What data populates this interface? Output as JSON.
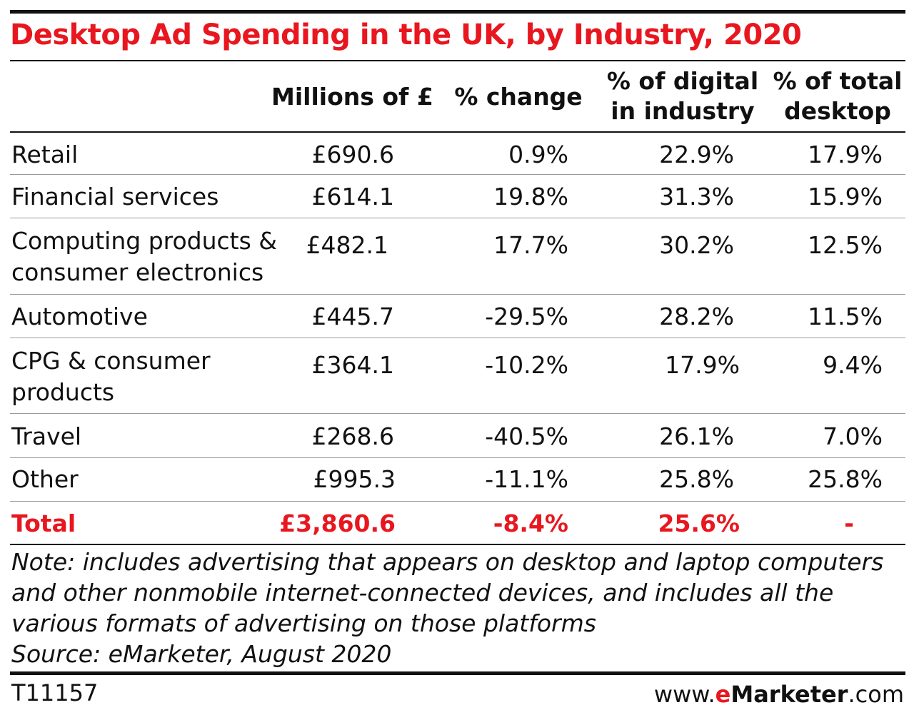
{
  "title": "Desktop Ad Spending in the UK, by Industry, 2020",
  "columns": {
    "millions": "Millions of £",
    "change": "% change",
    "digital_l1": "% of digital",
    "digital_l2": "in industry",
    "total_l1": "% of total",
    "total_l2": "desktop"
  },
  "rows": [
    {
      "label_l1": "Retail",
      "label_l2": "",
      "millions": "£690.6",
      "change": "0.9%",
      "digital": "22.9%",
      "total": "17.9%"
    },
    {
      "label_l1": "Financial services",
      "label_l2": "",
      "millions": "£614.1",
      "change": "19.8%",
      "digital": "31.3%",
      "total": "15.9%"
    },
    {
      "label_l1": "Computing products &",
      "label_l2": "consumer electronics",
      "millions": "£482.1",
      "change": "17.7%",
      "digital": "30.2%",
      "total": "12.5%"
    },
    {
      "label_l1": "Automotive",
      "label_l2": "",
      "millions": "£445.7",
      "change": "-29.5%",
      "digital": "28.2%",
      "total": "11.5%"
    },
    {
      "label_l1": "CPG & consumer",
      "label_l2": "products",
      "millions": "£364.1",
      "change": "-10.2%",
      "digital": "17.9%",
      "total": "9.4%"
    },
    {
      "label_l1": "Travel",
      "label_l2": "",
      "millions": "£268.6",
      "change": "-40.5%",
      "digital": "26.1%",
      "total": "7.0%"
    },
    {
      "label_l1": "Other",
      "label_l2": "",
      "millions": "£995.3",
      "change": "-11.1%",
      "digital": "25.8%",
      "total": "25.8%"
    }
  ],
  "total": {
    "label": "Total",
    "millions": "£3,860.6",
    "change": "-8.4%",
    "digital": "25.6%",
    "total": "-"
  },
  "note": {
    "line1": "Note: includes advertising that appears on desktop and laptop computers",
    "line2": "and other nonmobile internet-connected devices, and includes all the",
    "line3": "various formats of advertising on those platforms",
    "source": "Source: eMarketer, August 2020"
  },
  "footer": {
    "code": "T11157",
    "brand_prefix": "www.",
    "brand_e": "e",
    "brand_name": "Marketer",
    "brand_suffix": ".com"
  },
  "colors": {
    "accent": "#e8171f"
  },
  "chart_data": {
    "type": "table",
    "title": "Desktop Ad Spending in the UK, by Industry, 2020",
    "columns": [
      "",
      "Millions of £",
      "% change",
      "% of digital in industry",
      "% of total desktop"
    ],
    "rows": [
      [
        "Retail",
        690.6,
        0.9,
        22.9,
        17.9
      ],
      [
        "Financial services",
        614.1,
        19.8,
        31.3,
        15.9
      ],
      [
        "Computing products & consumer electronics",
        482.1,
        17.7,
        30.2,
        12.5
      ],
      [
        "Automotive",
        445.7,
        -29.5,
        28.2,
        11.5
      ],
      [
        "CPG & consumer products",
        364.1,
        -10.2,
        17.9,
        9.4
      ],
      [
        "Travel",
        268.6,
        -40.5,
        26.1,
        7.0
      ],
      [
        "Other",
        995.3,
        -11.1,
        25.8,
        25.8
      ],
      [
        "Total",
        3860.6,
        -8.4,
        25.6,
        null
      ]
    ]
  }
}
